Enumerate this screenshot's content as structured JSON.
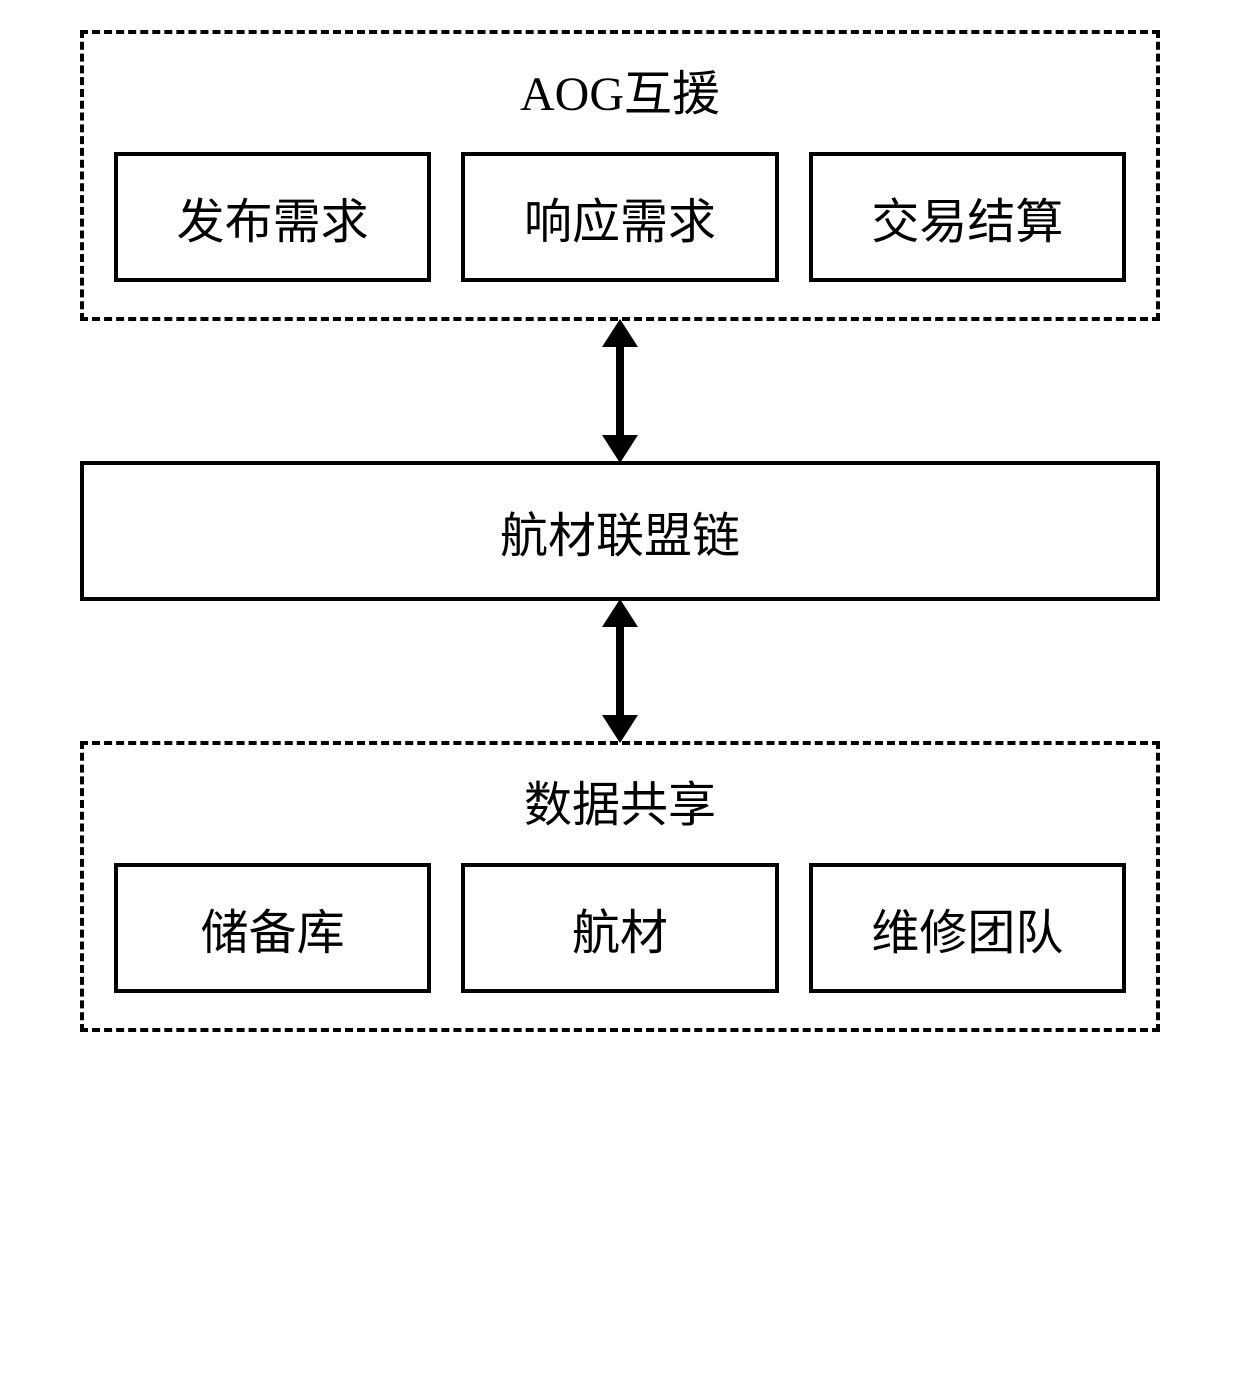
{
  "diagram": {
    "type": "flowchart",
    "background_color": "#ffffff",
    "stroke_color": "#000000",
    "text_color": "#000000",
    "font_family": "SimSun",
    "title_fontsize": 48,
    "box_fontsize": 48,
    "dashed_border_width": 4,
    "solid_border_width": 4,
    "top_group": {
      "title": "AOG互援",
      "border_style": "dashed",
      "boxes": [
        {
          "label": "发布需求"
        },
        {
          "label": "响应需求"
        },
        {
          "label": "交易结算"
        }
      ]
    },
    "center_box": {
      "label": "航材联盟链",
      "border_style": "solid"
    },
    "bottom_group": {
      "title": "数据共享",
      "border_style": "dashed",
      "boxes": [
        {
          "label": "储备库"
        },
        {
          "label": "航材"
        },
        {
          "label": "维修团队"
        }
      ]
    },
    "connectors": [
      {
        "from": "top_group",
        "to": "center_box",
        "type": "double-arrow"
      },
      {
        "from": "center_box",
        "to": "bottom_group",
        "type": "double-arrow"
      }
    ]
  }
}
